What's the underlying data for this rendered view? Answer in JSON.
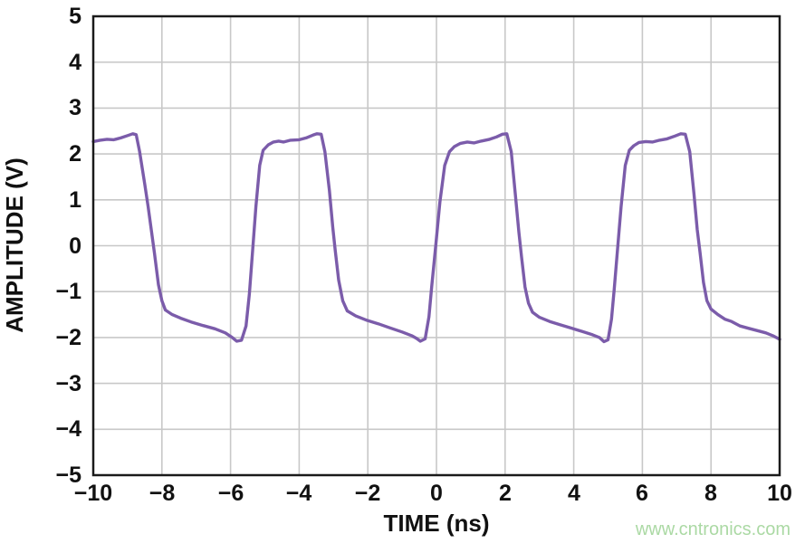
{
  "figure": {
    "watermark": {
      "text": "www.cntronics.com",
      "color": "#abd9a4"
    }
  },
  "chart_data": {
    "type": "line",
    "title": "",
    "xlabel": "TIME (ns)",
    "ylabel": "AMPLITUDE (V)",
    "xlim": [
      -10,
      10
    ],
    "ylim": [
      -5,
      5
    ],
    "grid": true,
    "legend": "none",
    "colors": {
      "axis": "#1a1a1a",
      "grid": "#c8c8c8",
      "background": "#ffffff",
      "line": "#7b5caa"
    },
    "xticks": [
      {
        "v": -10,
        "label": "−10"
      },
      {
        "v": -8,
        "label": "−8"
      },
      {
        "v": -6,
        "label": "−6"
      },
      {
        "v": -4,
        "label": "−4"
      },
      {
        "v": -2,
        "label": "−2"
      },
      {
        "v": 0,
        "label": "0"
      },
      {
        "v": 2,
        "label": "2"
      },
      {
        "v": 4,
        "label": "4"
      },
      {
        "v": 6,
        "label": "6"
      },
      {
        "v": 8,
        "label": "8"
      },
      {
        "v": 10,
        "label": "10"
      }
    ],
    "yticks": [
      {
        "v": 5,
        "label": "5"
      },
      {
        "v": 4,
        "label": "4"
      },
      {
        "v": 3,
        "label": "3"
      },
      {
        "v": 2,
        "label": "2"
      },
      {
        "v": 1,
        "label": "1"
      },
      {
        "v": 0,
        "label": "0"
      },
      {
        "v": -1,
        "label": "−1"
      },
      {
        "v": -2,
        "label": "−2"
      },
      {
        "v": -3,
        "label": "−3"
      },
      {
        "v": -4,
        "label": "−4"
      },
      {
        "v": -5,
        "label": "−5"
      }
    ],
    "series": [
      {
        "name": "amplitude",
        "color": "#7b5caa",
        "points": [
          [
            -10,
            2.27
          ],
          [
            -9.8,
            2.3
          ],
          [
            -9.6,
            2.32
          ],
          [
            -9.4,
            2.31
          ],
          [
            -9.2,
            2.35
          ],
          [
            -9.0,
            2.4
          ],
          [
            -8.85,
            2.44
          ],
          [
            -8.75,
            2.42
          ],
          [
            -8.65,
            2.05
          ],
          [
            -8.5,
            1.35
          ],
          [
            -8.4,
            0.85
          ],
          [
            -8.3,
            0.3
          ],
          [
            -8.22,
            -0.15
          ],
          [
            -8.1,
            -0.85
          ],
          [
            -8.0,
            -1.2
          ],
          [
            -7.9,
            -1.4
          ],
          [
            -7.7,
            -1.5
          ],
          [
            -7.45,
            -1.58
          ],
          [
            -7.15,
            -1.66
          ],
          [
            -6.8,
            -1.74
          ],
          [
            -6.45,
            -1.81
          ],
          [
            -6.15,
            -1.9
          ],
          [
            -5.95,
            -2.0
          ],
          [
            -5.82,
            -2.08
          ],
          [
            -5.68,
            -2.06
          ],
          [
            -5.55,
            -1.75
          ],
          [
            -5.45,
            -1.05
          ],
          [
            -5.35,
            -0.05
          ],
          [
            -5.26,
            0.85
          ],
          [
            -5.15,
            1.75
          ],
          [
            -5.05,
            2.08
          ],
          [
            -4.9,
            2.2
          ],
          [
            -4.75,
            2.26
          ],
          [
            -4.6,
            2.28
          ],
          [
            -4.45,
            2.26
          ],
          [
            -4.25,
            2.3
          ],
          [
            -4.0,
            2.31
          ],
          [
            -3.8,
            2.35
          ],
          [
            -3.6,
            2.41
          ],
          [
            -3.48,
            2.44
          ],
          [
            -3.36,
            2.43
          ],
          [
            -3.25,
            2.05
          ],
          [
            -3.12,
            1.2
          ],
          [
            -3.02,
            0.4
          ],
          [
            -2.95,
            -0.1
          ],
          [
            -2.85,
            -0.75
          ],
          [
            -2.73,
            -1.2
          ],
          [
            -2.6,
            -1.42
          ],
          [
            -2.35,
            -1.53
          ],
          [
            -2.05,
            -1.62
          ],
          [
            -1.7,
            -1.7
          ],
          [
            -1.35,
            -1.79
          ],
          [
            -1.0,
            -1.88
          ],
          [
            -0.72,
            -1.96
          ],
          [
            -0.58,
            -2.02
          ],
          [
            -0.47,
            -2.08
          ],
          [
            -0.33,
            -2.03
          ],
          [
            -0.22,
            -1.55
          ],
          [
            -0.14,
            -0.9
          ],
          [
            -0.02,
            0.0
          ],
          [
            0.1,
            0.95
          ],
          [
            0.24,
            1.75
          ],
          [
            0.38,
            2.05
          ],
          [
            0.52,
            2.16
          ],
          [
            0.7,
            2.23
          ],
          [
            0.9,
            2.26
          ],
          [
            1.1,
            2.24
          ],
          [
            1.3,
            2.28
          ],
          [
            1.55,
            2.32
          ],
          [
            1.75,
            2.37
          ],
          [
            1.92,
            2.43
          ],
          [
            2.05,
            2.44
          ],
          [
            2.18,
            2.05
          ],
          [
            2.3,
            1.1
          ],
          [
            2.4,
            0.3
          ],
          [
            2.48,
            -0.25
          ],
          [
            2.58,
            -0.9
          ],
          [
            2.68,
            -1.25
          ],
          [
            2.8,
            -1.45
          ],
          [
            3.0,
            -1.56
          ],
          [
            3.3,
            -1.65
          ],
          [
            3.6,
            -1.72
          ],
          [
            3.95,
            -1.8
          ],
          [
            4.25,
            -1.87
          ],
          [
            4.55,
            -1.94
          ],
          [
            4.75,
            -2.0
          ],
          [
            4.88,
            -2.09
          ],
          [
            5.0,
            -2.05
          ],
          [
            5.1,
            -1.6
          ],
          [
            5.18,
            -0.95
          ],
          [
            5.28,
            -0.05
          ],
          [
            5.38,
            0.85
          ],
          [
            5.5,
            1.75
          ],
          [
            5.62,
            2.08
          ],
          [
            5.75,
            2.18
          ],
          [
            5.9,
            2.25
          ],
          [
            6.1,
            2.27
          ],
          [
            6.3,
            2.26
          ],
          [
            6.5,
            2.3
          ],
          [
            6.72,
            2.33
          ],
          [
            6.95,
            2.39
          ],
          [
            7.12,
            2.44
          ],
          [
            7.25,
            2.43
          ],
          [
            7.38,
            2.05
          ],
          [
            7.5,
            1.15
          ],
          [
            7.6,
            0.35
          ],
          [
            7.68,
            -0.15
          ],
          [
            7.78,
            -0.8
          ],
          [
            7.88,
            -1.2
          ],
          [
            8.0,
            -1.38
          ],
          [
            8.2,
            -1.5
          ],
          [
            8.4,
            -1.6
          ],
          [
            8.6,
            -1.65
          ],
          [
            8.85,
            -1.75
          ],
          [
            9.1,
            -1.8
          ],
          [
            9.35,
            -1.85
          ],
          [
            9.6,
            -1.9
          ],
          [
            9.8,
            -1.96
          ],
          [
            10.0,
            -2.04
          ]
        ]
      }
    ]
  }
}
